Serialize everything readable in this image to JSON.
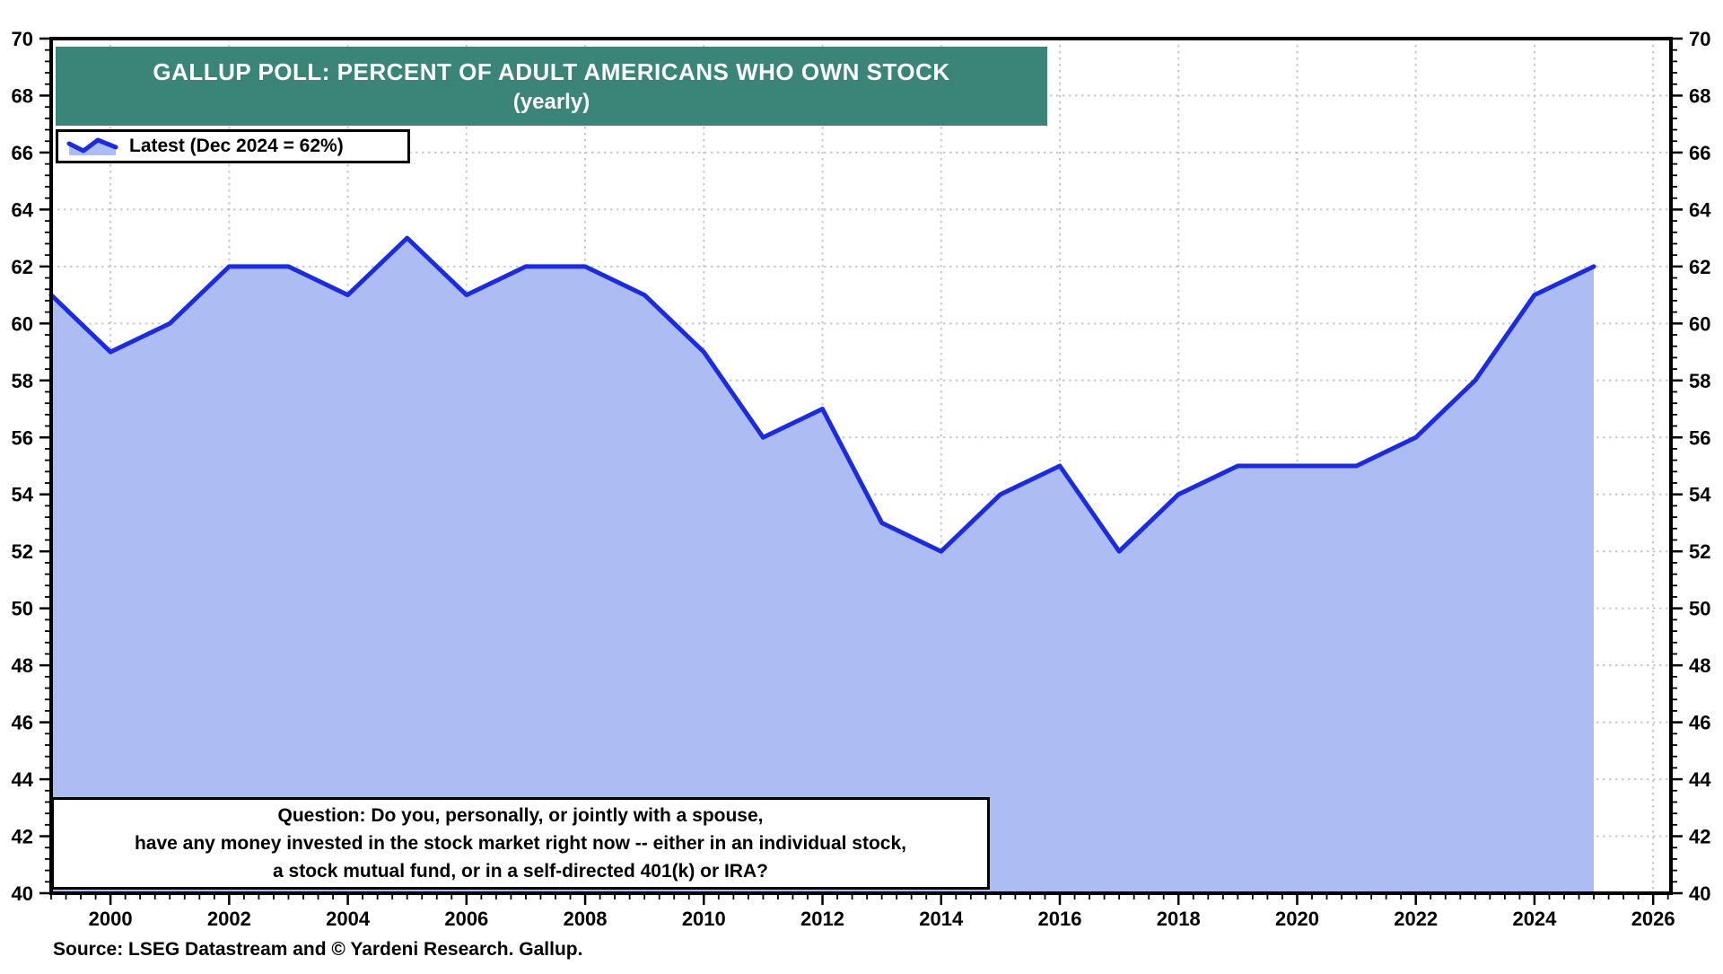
{
  "header": {
    "title": "GALLUP POLL: PERCENT OF ADULT AMERICANS WHO OWN STOCK",
    "subtitle": "(yearly)"
  },
  "legend": {
    "label": "Latest (Dec 2024 = 62%)",
    "icon": "area-line-icon"
  },
  "question_box": {
    "lines": [
      "Question: Do you, personally, or jointly with a spouse,",
      "have any money invested in the stock market right now -- either in an individual stock,",
      "a stock mutual fund, or in a self-directed 401(k) or IRA?"
    ]
  },
  "source": "Source: LSEG Datastream and © Yardeni Research. Gallup.",
  "colors": {
    "header_bg": "#3A8577",
    "header_text": "#FFFFFF",
    "line": "#1A2BE0",
    "fill": "#AEBCF4",
    "grid": "#C9C9C9",
    "axis": "#000000",
    "text": "#000000"
  },
  "chart_data": {
    "type": "area",
    "title": "GALLUP POLL: PERCENT OF ADULT AMERICANS WHO OWN STOCK",
    "subtitle": "(yearly)",
    "legend_entries": [
      "Latest (Dec 2024 = 62%)"
    ],
    "legend_position": "top-left",
    "xlabel": "",
    "ylabel": "Percent of adult Americans who own stock",
    "x": [
      1999,
      2000,
      2001,
      2002,
      2003,
      2004,
      2005,
      2006,
      2007,
      2008,
      2009,
      2010,
      2011,
      2012,
      2013,
      2014,
      2015,
      2016,
      2017,
      2018,
      2019,
      2020,
      2021,
      2022,
      2023,
      2024,
      2025
    ],
    "values": [
      61,
      59,
      60,
      62,
      62,
      61,
      63,
      61,
      62,
      62,
      61,
      59,
      56,
      57,
      53,
      52,
      54,
      55,
      52,
      54,
      55,
      55,
      55,
      56,
      58,
      61,
      62
    ],
    "latest_point": {
      "label": "Dec 2024",
      "value": 62
    },
    "xlim": [
      1999,
      2026.3
    ],
    "ylim": [
      40,
      70
    ],
    "x_ticks": [
      2000,
      2002,
      2004,
      2006,
      2008,
      2010,
      2012,
      2014,
      2016,
      2018,
      2020,
      2022,
      2024,
      2026
    ],
    "y_ticks": [
      40,
      42,
      44,
      46,
      48,
      50,
      52,
      54,
      56,
      58,
      60,
      62,
      64,
      66,
      68,
      70
    ],
    "y_tick_sides": [
      "left",
      "right"
    ],
    "grid": {
      "show": true,
      "style": "dotted",
      "x_interval_years": 2,
      "y_interval": 2
    }
  }
}
